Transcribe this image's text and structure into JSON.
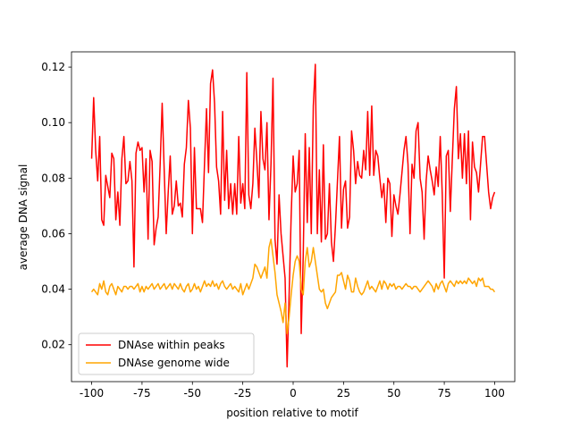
{
  "chart_data": {
    "type": "line",
    "xlabel": "position relative to motif",
    "ylabel": "average DNA signal",
    "x": [
      -100,
      -99,
      -98,
      -97,
      -96,
      -95,
      -94,
      -93,
      -92,
      -91,
      -90,
      -89,
      -88,
      -87,
      -86,
      -85,
      -84,
      -83,
      -82,
      -81,
      -80,
      -79,
      -78,
      -77,
      -76,
      -75,
      -74,
      -73,
      -72,
      -71,
      -70,
      -69,
      -68,
      -67,
      -66,
      -65,
      -64,
      -63,
      -62,
      -61,
      -60,
      -59,
      -58,
      -57,
      -56,
      -55,
      -54,
      -53,
      -52,
      -51,
      -50,
      -49,
      -48,
      -47,
      -46,
      -45,
      -44,
      -43,
      -42,
      -41,
      -40,
      -39,
      -38,
      -37,
      -36,
      -35,
      -34,
      -33,
      -32,
      -31,
      -30,
      -29,
      -28,
      -27,
      -26,
      -25,
      -24,
      -23,
      -22,
      -21,
      -20,
      -19,
      -18,
      -17,
      -16,
      -15,
      -14,
      -13,
      -12,
      -11,
      -10,
      -9,
      -8,
      -7,
      -6,
      -5,
      -4,
      -3,
      -2,
      -1,
      0,
      1,
      2,
      3,
      4,
      5,
      6,
      7,
      8,
      9,
      10,
      11,
      12,
      13,
      14,
      15,
      16,
      17,
      18,
      19,
      20,
      21,
      22,
      23,
      24,
      25,
      26,
      27,
      28,
      29,
      30,
      31,
      32,
      33,
      34,
      35,
      36,
      37,
      38,
      39,
      40,
      41,
      42,
      43,
      44,
      45,
      46,
      47,
      48,
      49,
      50,
      51,
      52,
      53,
      54,
      55,
      56,
      57,
      58,
      59,
      60,
      61,
      62,
      63,
      64,
      65,
      66,
      67,
      68,
      69,
      70,
      71,
      72,
      73,
      74,
      75,
      76,
      77,
      78,
      79,
      80,
      81,
      82,
      83,
      84,
      85,
      86,
      87,
      88,
      89,
      90,
      91,
      92,
      93,
      94,
      95,
      96,
      97,
      98,
      99,
      100
    ],
    "series": [
      {
        "name": "DNAse within peaks",
        "color": "#ff0000",
        "values": [
          0.087,
          0.109,
          0.09,
          0.079,
          0.095,
          0.065,
          0.063,
          0.081,
          0.077,
          0.073,
          0.089,
          0.087,
          0.065,
          0.075,
          0.063,
          0.087,
          0.095,
          0.078,
          0.079,
          0.086,
          0.079,
          0.048,
          0.089,
          0.093,
          0.09,
          0.091,
          0.075,
          0.087,
          0.058,
          0.09,
          0.086,
          0.056,
          0.062,
          0.066,
          0.085,
          0.107,
          0.083,
          0.06,
          0.075,
          0.088,
          0.067,
          0.07,
          0.079,
          0.07,
          0.071,
          0.066,
          0.085,
          0.091,
          0.108,
          0.098,
          0.06,
          0.091,
          0.069,
          0.069,
          0.069,
          0.064,
          0.085,
          0.105,
          0.082,
          0.114,
          0.119,
          0.107,
          0.084,
          0.079,
          0.067,
          0.104,
          0.072,
          0.09,
          0.069,
          0.078,
          0.067,
          0.078,
          0.067,
          0.095,
          0.071,
          0.078,
          0.069,
          0.118,
          0.074,
          0.069,
          0.078,
          0.098,
          0.086,
          0.073,
          0.104,
          0.087,
          0.083,
          0.1,
          0.065,
          0.085,
          0.116,
          0.058,
          0.049,
          0.074,
          0.06,
          0.052,
          0.044,
          0.012,
          0.038,
          0.066,
          0.088,
          0.075,
          0.078,
          0.09,
          0.024,
          0.052,
          0.096,
          0.064,
          0.091,
          0.06,
          0.106,
          0.121,
          0.06,
          0.083,
          0.057,
          0.092,
          0.058,
          0.06,
          0.078,
          0.057,
          0.05,
          0.063,
          0.079,
          0.095,
          0.062,
          0.076,
          0.079,
          0.062,
          0.066,
          0.097,
          0.09,
          0.078,
          0.086,
          0.081,
          0.08,
          0.09,
          0.083,
          0.104,
          0.081,
          0.106,
          0.081,
          0.09,
          0.088,
          0.08,
          0.073,
          0.078,
          0.064,
          0.08,
          0.078,
          0.059,
          0.074,
          0.07,
          0.067,
          0.074,
          0.082,
          0.09,
          0.095,
          0.085,
          0.06,
          0.085,
          0.08,
          0.097,
          0.1,
          0.08,
          0.075,
          0.058,
          0.079,
          0.088,
          0.083,
          0.079,
          0.074,
          0.084,
          0.077,
          0.095,
          0.074,
          0.044,
          0.088,
          0.09,
          0.068,
          0.087,
          0.105,
          0.113,
          0.087,
          0.096,
          0.08,
          0.096,
          0.078,
          0.097,
          0.065,
          0.093,
          0.084,
          0.082,
          0.075,
          0.085,
          0.095,
          0.095,
          0.085,
          0.075,
          0.069,
          0.073,
          0.075
        ]
      },
      {
        "name": "DNAse genome wide",
        "color": "#ffa500",
        "values": [
          0.039,
          0.04,
          0.039,
          0.038,
          0.042,
          0.04,
          0.043,
          0.039,
          0.038,
          0.041,
          0.042,
          0.04,
          0.038,
          0.041,
          0.04,
          0.039,
          0.041,
          0.041,
          0.04,
          0.041,
          0.041,
          0.04,
          0.041,
          0.042,
          0.039,
          0.041,
          0.039,
          0.041,
          0.04,
          0.041,
          0.042,
          0.04,
          0.041,
          0.042,
          0.04,
          0.041,
          0.042,
          0.04,
          0.041,
          0.042,
          0.04,
          0.042,
          0.041,
          0.04,
          0.042,
          0.04,
          0.039,
          0.041,
          0.042,
          0.039,
          0.04,
          0.042,
          0.04,
          0.041,
          0.039,
          0.041,
          0.043,
          0.041,
          0.042,
          0.041,
          0.043,
          0.041,
          0.042,
          0.04,
          0.042,
          0.043,
          0.041,
          0.04,
          0.041,
          0.042,
          0.04,
          0.041,
          0.04,
          0.039,
          0.042,
          0.038,
          0.04,
          0.042,
          0.04,
          0.042,
          0.044,
          0.049,
          0.048,
          0.046,
          0.044,
          0.046,
          0.048,
          0.044,
          0.055,
          0.058,
          0.052,
          0.046,
          0.038,
          0.035,
          0.032,
          0.028,
          0.035,
          0.024,
          0.03,
          0.038,
          0.045,
          0.05,
          0.052,
          0.05,
          0.04,
          0.038,
          0.05,
          0.055,
          0.048,
          0.05,
          0.055,
          0.05,
          0.045,
          0.04,
          0.039,
          0.04,
          0.035,
          0.033,
          0.035,
          0.037,
          0.038,
          0.039,
          0.045,
          0.045,
          0.046,
          0.043,
          0.04,
          0.045,
          0.043,
          0.039,
          0.039,
          0.044,
          0.041,
          0.039,
          0.038,
          0.039,
          0.041,
          0.043,
          0.04,
          0.041,
          0.04,
          0.039,
          0.041,
          0.043,
          0.04,
          0.043,
          0.042,
          0.04,
          0.042,
          0.041,
          0.042,
          0.04,
          0.041,
          0.041,
          0.04,
          0.041,
          0.042,
          0.041,
          0.041,
          0.04,
          0.041,
          0.041,
          0.04,
          0.039,
          0.04,
          0.041,
          0.042,
          0.043,
          0.042,
          0.041,
          0.039,
          0.042,
          0.04,
          0.042,
          0.043,
          0.041,
          0.039,
          0.042,
          0.043,
          0.042,
          0.041,
          0.043,
          0.042,
          0.043,
          0.042,
          0.043,
          0.042,
          0.044,
          0.043,
          0.042,
          0.043,
          0.041,
          0.044,
          0.043,
          0.044,
          0.041,
          0.041,
          0.041,
          0.04,
          0.04,
          0.039
        ]
      }
    ],
    "xlim": [
      -110,
      110
    ],
    "ylim": [
      0.0067,
      0.1255
    ],
    "xticks": [
      -100,
      -75,
      -50,
      -25,
      0,
      25,
      50,
      75,
      100
    ],
    "yticks": [
      0.02,
      0.04,
      0.06,
      0.08,
      {
        "value": 0.1,
        "label": "0.10"
      },
      0.12
    ],
    "legend": "lower left"
  }
}
